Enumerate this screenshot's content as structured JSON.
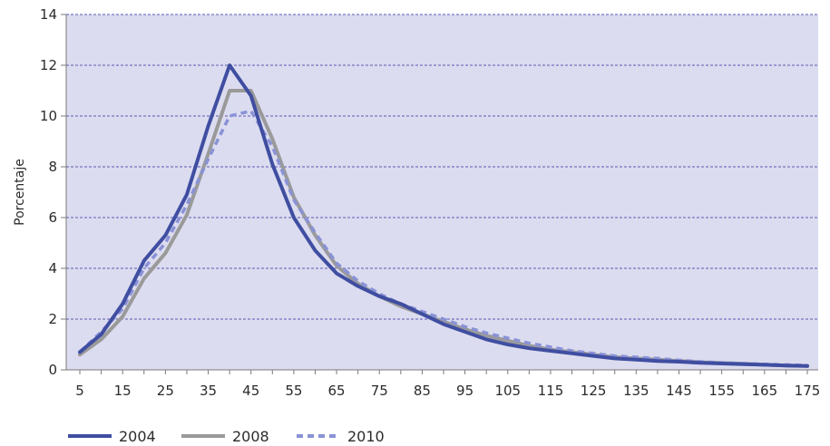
{
  "chart_data": {
    "type": "line",
    "ylabel": "Porcentaje",
    "xlabel": "",
    "ylim": [
      0,
      14
    ],
    "yticks": [
      "0",
      "2",
      "4",
      "6",
      "8",
      "10",
      "12",
      "14"
    ],
    "xticks": [
      "5",
      "15",
      "25",
      "35",
      "45",
      "55",
      "65",
      "75",
      "85",
      "95",
      "105",
      "115",
      "125",
      "135",
      "145",
      "155",
      "165",
      "175"
    ],
    "x": [
      5,
      10,
      15,
      20,
      25,
      30,
      35,
      40,
      45,
      50,
      55,
      60,
      65,
      70,
      75,
      80,
      85,
      90,
      95,
      100,
      105,
      110,
      115,
      120,
      125,
      130,
      135,
      140,
      145,
      150,
      155,
      160,
      165,
      170,
      175
    ],
    "grid": true,
    "legend_position": "bottom-left",
    "plot_background": "#dcdcf0",
    "gridline_color": "#5a5ab4",
    "series": [
      {
        "name": "2004",
        "color": "#3f4ea1",
        "style": "solid",
        "values": [
          0.7,
          1.4,
          2.6,
          4.3,
          5.3,
          6.9,
          9.6,
          12.0,
          10.8,
          8.1,
          6.0,
          4.7,
          3.8,
          3.3,
          2.9,
          2.6,
          2.2,
          1.8,
          1.5,
          1.2,
          1.0,
          0.85,
          0.75,
          0.65,
          0.55,
          0.45,
          0.4,
          0.35,
          0.32,
          0.28,
          0.25,
          0.22,
          0.2,
          0.17,
          0.15
        ]
      },
      {
        "name": "2008",
        "color": "#9a9a9a",
        "style": "solid",
        "values": [
          0.6,
          1.2,
          2.1,
          3.6,
          4.6,
          6.1,
          8.5,
          11.0,
          11.0,
          9.1,
          6.8,
          5.3,
          4.1,
          3.4,
          2.9,
          2.5,
          2.2,
          1.9,
          1.6,
          1.35,
          1.15,
          0.95,
          0.8,
          0.7,
          0.6,
          0.5,
          0.45,
          0.4,
          0.35,
          0.3,
          0.27,
          0.24,
          0.2,
          0.17,
          0.15
        ]
      },
      {
        "name": "2010",
        "color": "#8a92d6",
        "style": "dashed",
        "values": [
          0.7,
          1.5,
          2.4,
          4.0,
          5.0,
          6.5,
          8.3,
          10.0,
          10.2,
          8.8,
          6.7,
          5.4,
          4.2,
          3.5,
          3.0,
          2.6,
          2.3,
          2.0,
          1.7,
          1.45,
          1.25,
          1.05,
          0.9,
          0.75,
          0.65,
          0.55,
          0.5,
          0.45,
          0.38,
          0.32,
          0.28,
          0.25,
          0.22,
          0.2,
          0.18
        ]
      }
    ]
  }
}
